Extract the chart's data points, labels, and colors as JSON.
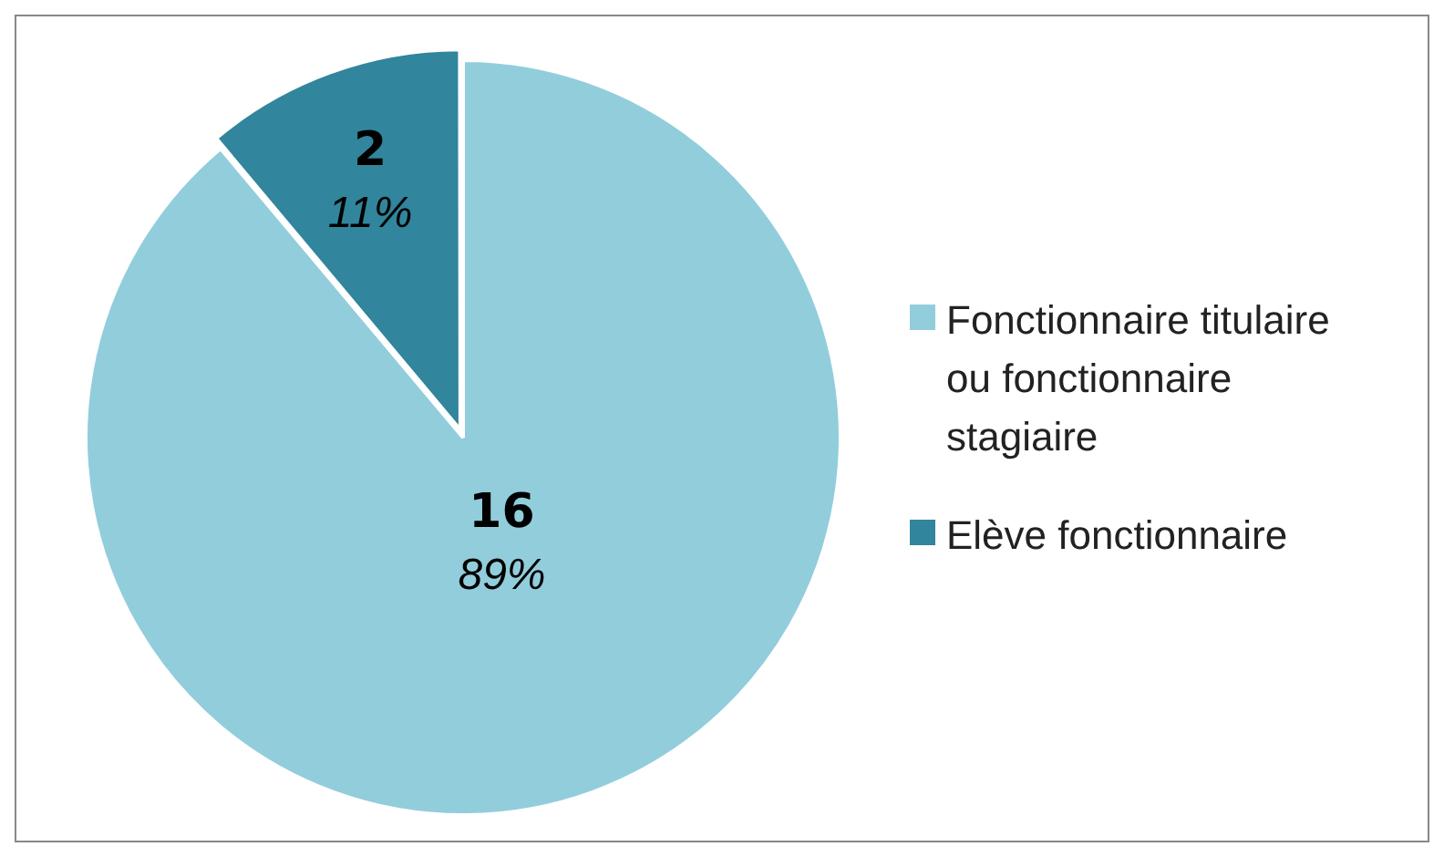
{
  "chart_data": {
    "type": "pie",
    "categories": [
      "Fonctionnaire titulaire ou fonctionnaire stagiaire",
      "Elève fonctionnaire"
    ],
    "values": [
      16,
      2
    ],
    "colors": [
      "#92cddc",
      "#31859c"
    ],
    "value_labels": [
      "16 89%",
      "2 11%"
    ],
    "legend": "right"
  }
}
